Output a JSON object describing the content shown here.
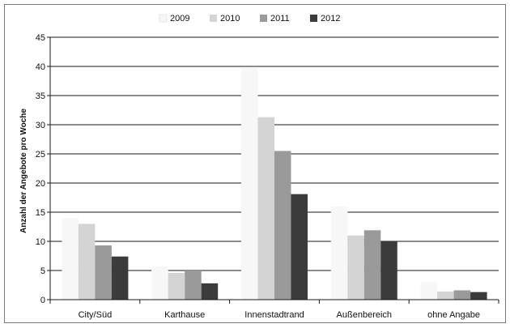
{
  "chart_data": {
    "type": "bar",
    "categories": [
      "City/Süd",
      "Karthause",
      "Innenstadtrand",
      "Außenbereich",
      "ohne Angabe"
    ],
    "series": [
      {
        "name": "2009",
        "values": [
          14,
          5.7,
          39.7,
          16,
          3
        ],
        "color": "#f7f7f7"
      },
      {
        "name": "2010",
        "values": [
          13,
          4.6,
          31.3,
          11,
          1.4
        ],
        "color": "#d4d4d4"
      },
      {
        "name": "2011",
        "values": [
          9.3,
          5,
          25.5,
          11.9,
          1.6
        ],
        "color": "#9a9a9a"
      },
      {
        "name": "2012",
        "values": [
          7.4,
          2.8,
          18.1,
          10,
          1.3
        ],
        "color": "#3b3b3b"
      }
    ],
    "title": "",
    "xlabel": "",
    "ylabel": "Anzahl der Angebote pro Woche",
    "ylim": [
      0,
      45
    ],
    "yticks": [
      "0",
      "5",
      "10",
      "15",
      "20",
      "25",
      "30",
      "35",
      "40",
      "45"
    ],
    "grid": true,
    "legend_position": "top"
  }
}
